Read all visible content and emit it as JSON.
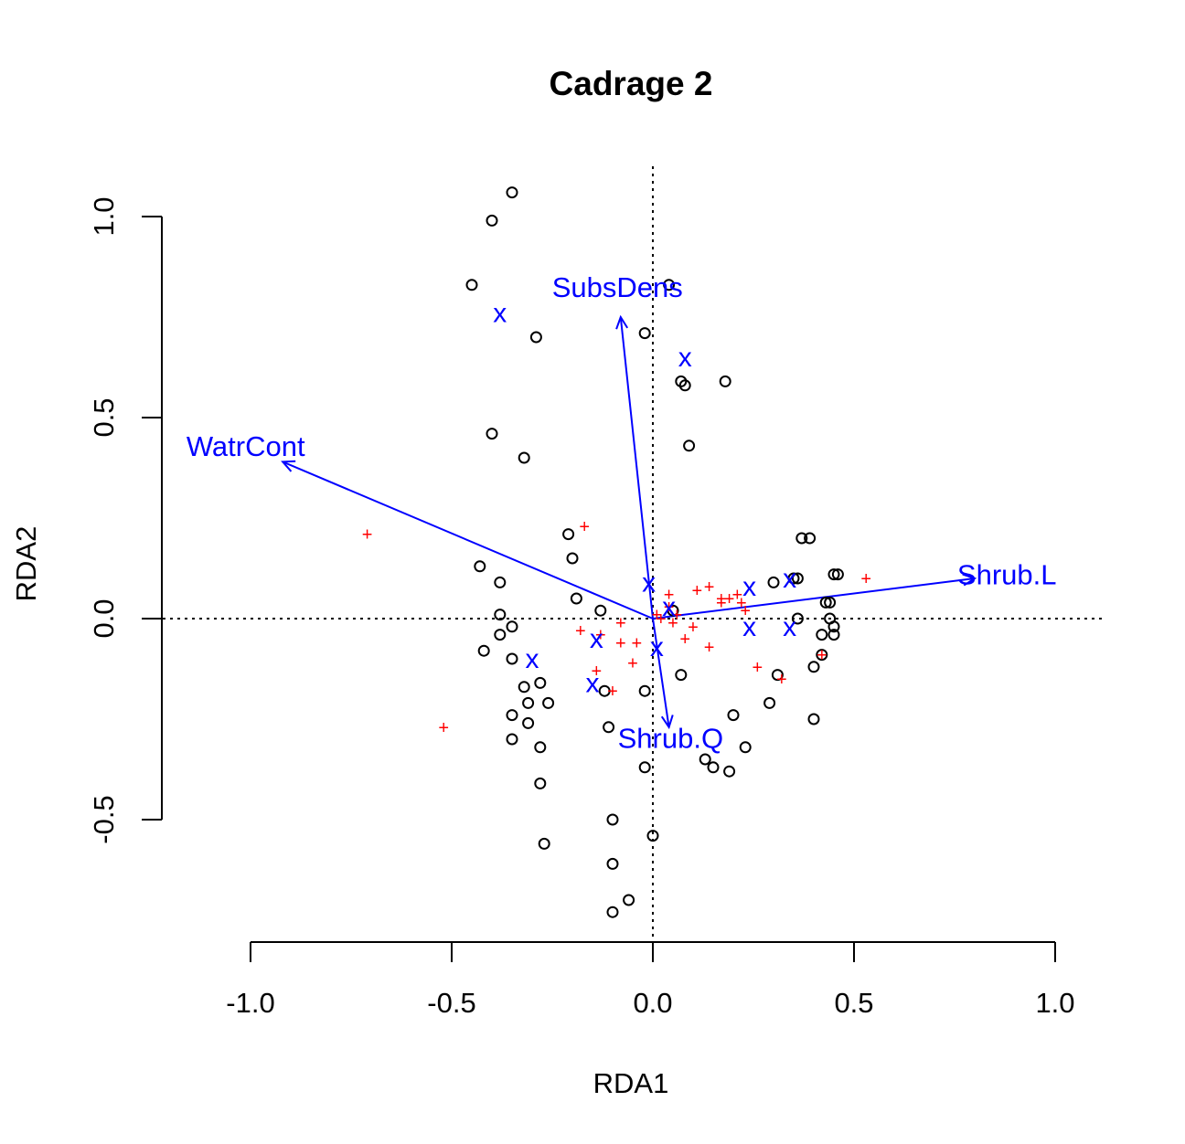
{
  "chart_data": {
    "type": "scatter",
    "title": "Cadrage 2",
    "xlabel": "RDA1",
    "ylabel": "RDA2",
    "xlim": [
      -1.0,
      1.0
    ],
    "ylim": [
      -0.5,
      1.0
    ],
    "x_ticks": [
      "-1.0",
      "-0.5",
      "0.0",
      "0.5",
      "1.0"
    ],
    "x_tick_values": [
      -1.0,
      -0.5,
      0.0,
      0.5,
      1.0
    ],
    "y_ticks": [
      "-0.5",
      "0.0",
      "0.5",
      "1.0"
    ],
    "y_tick_values": [
      -0.5,
      0.0,
      0.5,
      1.0
    ],
    "reference_lines": {
      "x": 0,
      "y": 0,
      "style": "dotted"
    },
    "colors": {
      "sites": "#000000",
      "species": "#ff0000",
      "centroids": "#0000ff",
      "arrows": "#0000ff"
    },
    "sites": [
      [
        -0.35,
        1.06
      ],
      [
        -0.4,
        0.99
      ],
      [
        -0.45,
        0.83
      ],
      [
        0.04,
        0.83
      ],
      [
        -0.29,
        0.7
      ],
      [
        -0.02,
        0.71
      ],
      [
        0.07,
        0.59
      ],
      [
        0.08,
        0.58
      ],
      [
        0.18,
        0.59
      ],
      [
        -0.4,
        0.46
      ],
      [
        -0.32,
        0.4
      ],
      [
        0.09,
        0.43
      ],
      [
        -0.21,
        0.21
      ],
      [
        -0.2,
        0.15
      ],
      [
        -0.43,
        0.13
      ],
      [
        -0.38,
        0.09
      ],
      [
        -0.19,
        0.05
      ],
      [
        -0.38,
        0.01
      ],
      [
        -0.13,
        0.02
      ],
      [
        -0.35,
        -0.02
      ],
      [
        -0.38,
        -0.04
      ],
      [
        -0.42,
        -0.08
      ],
      [
        -0.35,
        -0.1
      ],
      [
        -0.32,
        -0.17
      ],
      [
        -0.28,
        -0.16
      ],
      [
        -0.35,
        -0.24
      ],
      [
        -0.31,
        -0.21
      ],
      [
        -0.26,
        -0.21
      ],
      [
        -0.31,
        -0.26
      ],
      [
        -0.35,
        -0.3
      ],
      [
        -0.28,
        -0.32
      ],
      [
        -0.12,
        -0.18
      ],
      [
        -0.02,
        -0.18
      ],
      [
        0.07,
        -0.14
      ],
      [
        -0.11,
        -0.27
      ],
      [
        -0.28,
        -0.41
      ],
      [
        -0.27,
        -0.56
      ],
      [
        -0.02,
        -0.37
      ],
      [
        0.13,
        -0.35
      ],
      [
        0.15,
        -0.37
      ],
      [
        0.19,
        -0.38
      ],
      [
        0.23,
        -0.32
      ],
      [
        0.2,
        -0.24
      ],
      [
        0.29,
        -0.21
      ],
      [
        0.31,
        -0.14
      ],
      [
        0.4,
        -0.25
      ],
      [
        0.4,
        -0.12
      ],
      [
        0.42,
        -0.09
      ],
      [
        0.3,
        0.09
      ],
      [
        0.35,
        0.1
      ],
      [
        0.36,
        0.1
      ],
      [
        0.37,
        0.2
      ],
      [
        0.39,
        0.2
      ],
      [
        0.45,
        0.11
      ],
      [
        0.46,
        0.11
      ],
      [
        0.43,
        0.04
      ],
      [
        0.44,
        0.04
      ],
      [
        0.44,
        0.0
      ],
      [
        0.45,
        -0.02
      ],
      [
        0.45,
        -0.04
      ],
      [
        0.42,
        -0.04
      ],
      [
        0.36,
        0.0
      ],
      [
        0.05,
        0.02
      ],
      [
        0.0,
        -0.54
      ],
      [
        -0.1,
        -0.5
      ],
      [
        -0.1,
        -0.61
      ],
      [
        -0.06,
        -0.7
      ],
      [
        -0.1,
        -0.73
      ]
    ],
    "species": [
      [
        -0.71,
        0.21
      ],
      [
        -0.52,
        -0.27
      ],
      [
        -0.17,
        0.23
      ],
      [
        -0.18,
        -0.03
      ],
      [
        -0.14,
        -0.13
      ],
      [
        -0.13,
        -0.04
      ],
      [
        -0.08,
        -0.01
      ],
      [
        -0.08,
        -0.06
      ],
      [
        -0.04,
        -0.06
      ],
      [
        -0.05,
        -0.11
      ],
      [
        -0.1,
        -0.18
      ],
      [
        0.01,
        0.01
      ],
      [
        0.02,
        0.0
      ],
      [
        0.04,
        0.03
      ],
      [
        0.04,
        0.06
      ],
      [
        0.05,
        -0.01
      ],
      [
        0.06,
        0.01
      ],
      [
        0.08,
        -0.05
      ],
      [
        0.1,
        -0.02
      ],
      [
        0.11,
        0.07
      ],
      [
        0.14,
        0.08
      ],
      [
        0.14,
        -0.07
      ],
      [
        0.17,
        0.05
      ],
      [
        0.17,
        0.04
      ],
      [
        0.19,
        0.05
      ],
      [
        0.21,
        0.06
      ],
      [
        0.22,
        0.04
      ],
      [
        0.23,
        0.02
      ],
      [
        0.26,
        -0.12
      ],
      [
        0.32,
        -0.15
      ],
      [
        0.42,
        -0.09
      ],
      [
        0.53,
        0.1
      ]
    ],
    "centroids": [
      [
        -0.38,
        0.76
      ],
      [
        0.08,
        0.65
      ],
      [
        -0.3,
        -0.1
      ],
      [
        -0.14,
        -0.05
      ],
      [
        -0.15,
        -0.16
      ],
      [
        -0.01,
        0.09
      ],
      [
        0.01,
        -0.07
      ],
      [
        0.04,
        0.03
      ],
      [
        0.24,
        0.08
      ],
      [
        0.24,
        -0.02
      ],
      [
        0.34,
        0.1
      ],
      [
        0.34,
        -0.02
      ]
    ],
    "arrows": [
      {
        "label": "SubsDens",
        "x": -0.08,
        "y": 0.75
      },
      {
        "label": "WatrCont",
        "x": -0.92,
        "y": 0.39
      },
      {
        "label": "Shrub.L",
        "x": 0.8,
        "y": 0.1
      },
      {
        "label": "Shrub.Q",
        "x": 0.04,
        "y": -0.27
      }
    ]
  }
}
